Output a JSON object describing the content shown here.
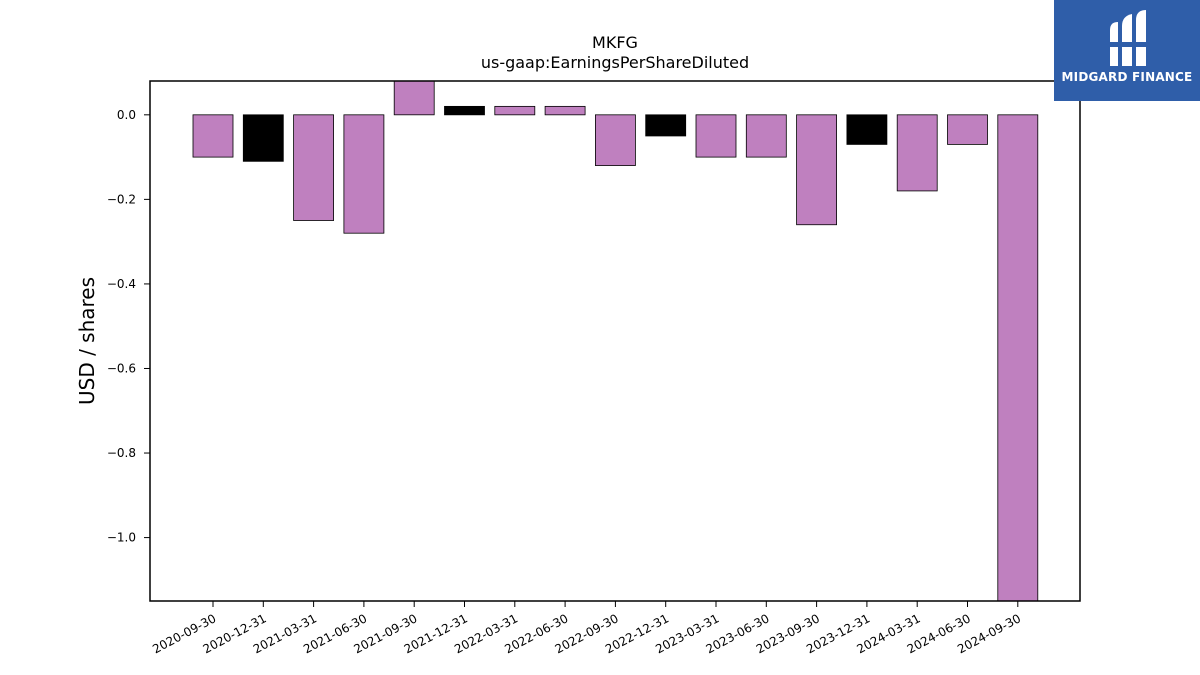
{
  "chart_data": {
    "type": "bar",
    "title": "MKFG",
    "subtitle": "us-gaap:EarningsPerShareDiluted",
    "xlabel": "",
    "ylabel": "USD / shares",
    "ylim": [
      -1.15,
      0.08
    ],
    "yticks": [
      0.0,
      -0.2,
      -0.4,
      -0.6,
      -0.8,
      -1.0
    ],
    "ytick_labels": [
      "0.0",
      "−0.2",
      "−0.4",
      "−0.6",
      "−0.8",
      "−1.0"
    ],
    "categories": [
      "2020-09-30",
      "2020-12-31",
      "2021-03-31",
      "2021-06-30",
      "2021-09-30",
      "2021-12-31",
      "2022-03-31",
      "2022-06-30",
      "2022-09-30",
      "2022-12-31",
      "2023-03-31",
      "2023-06-30",
      "2023-09-30",
      "2023-12-31",
      "2024-03-31",
      "2024-06-30",
      "2024-09-30"
    ],
    "values": [
      -0.1,
      -0.11,
      -0.25,
      -0.28,
      0.08,
      0.02,
      0.02,
      0.02,
      -0.12,
      -0.05,
      -0.1,
      -0.1,
      -0.26,
      -0.07,
      -0.18,
      -0.07,
      -1.15
    ],
    "bar_colors": [
      "#bf80bf",
      "#000000",
      "#bf80bf",
      "#bf80bf",
      "#bf80bf",
      "#000000",
      "#bf80bf",
      "#bf80bf",
      "#bf80bf",
      "#000000",
      "#bf80bf",
      "#bf80bf",
      "#bf80bf",
      "#000000",
      "#bf80bf",
      "#bf80bf",
      "#bf80bf"
    ],
    "grid": false,
    "legend": "none"
  },
  "logo": {
    "text": "MIDGARD FINANCE",
    "icon": "midgard-logo-icon",
    "background": "#2f5ea9"
  }
}
